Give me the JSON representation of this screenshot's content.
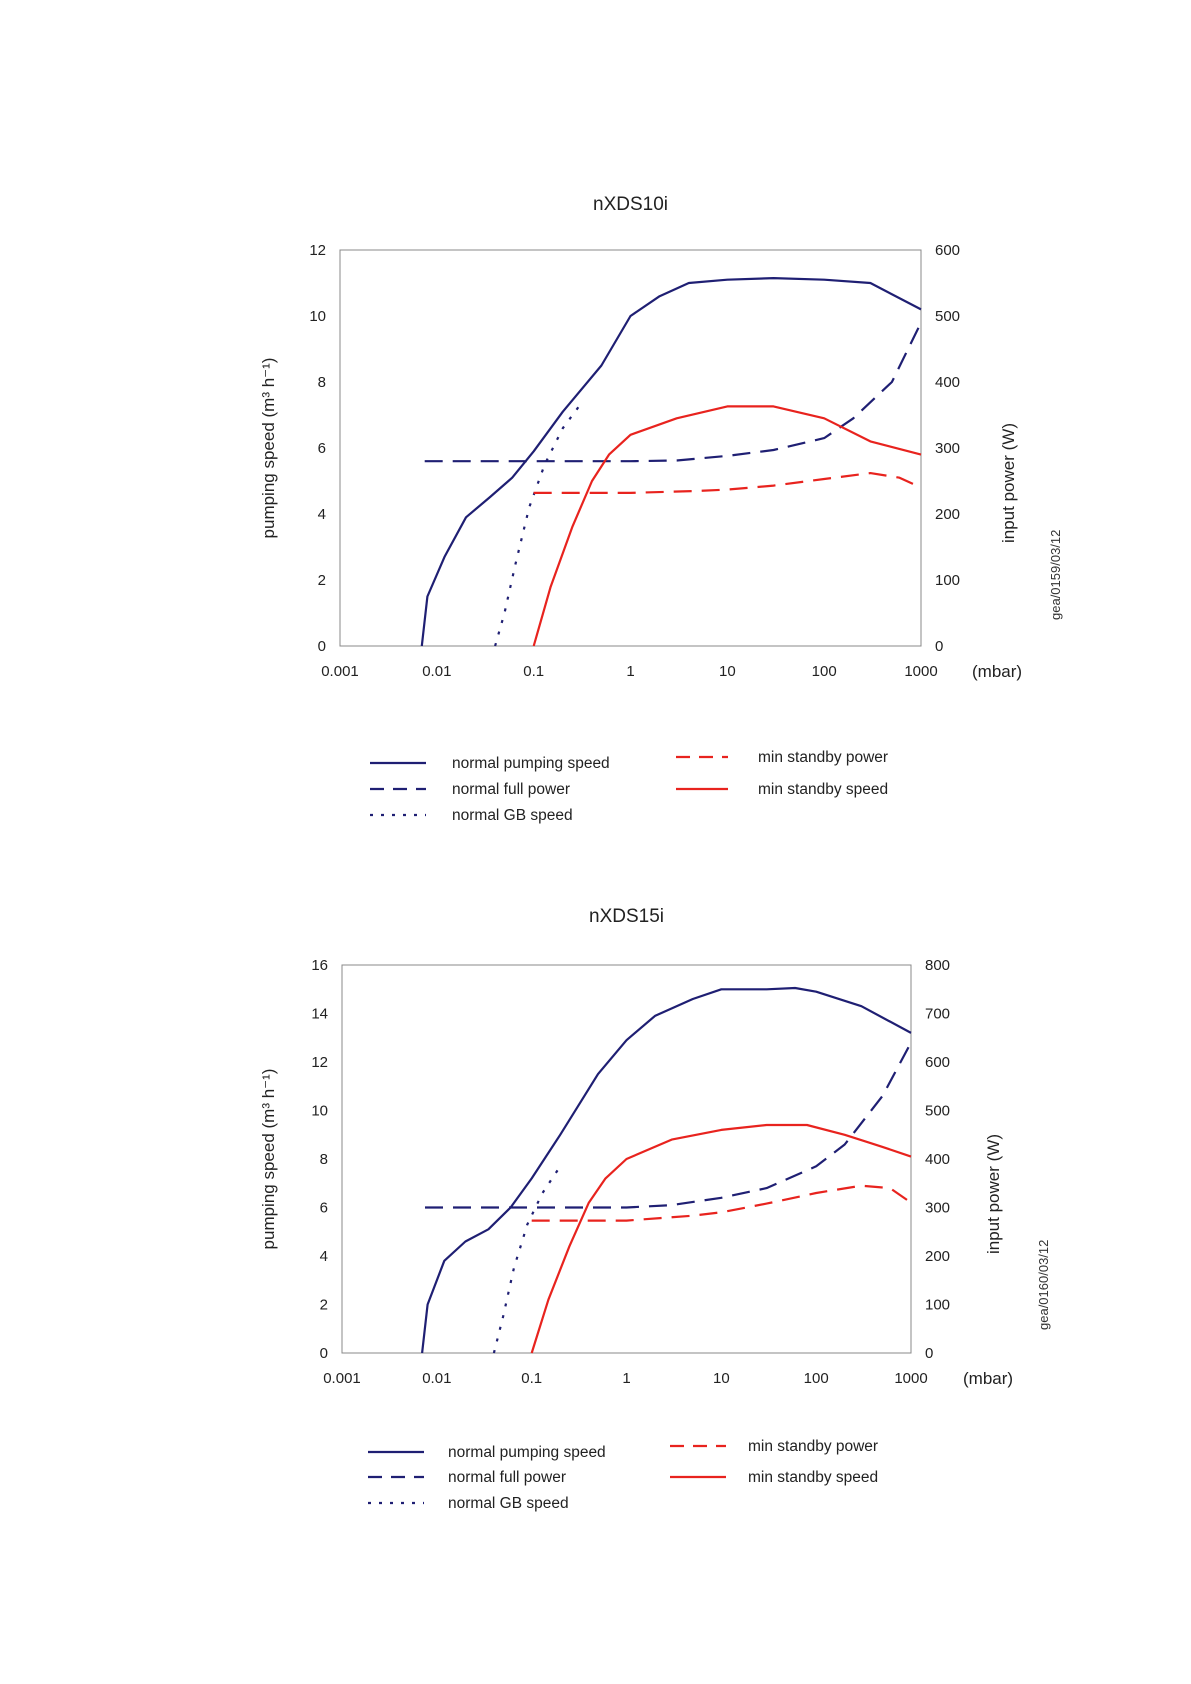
{
  "colors": {
    "navy": "#1f1f73",
    "red": "#e8231e"
  },
  "chart_data": [
    {
      "type": "line",
      "title": "nXDS10i",
      "ylabel": "pumping speed (m³ h⁻¹)",
      "y2label": "input power (W)",
      "xunit": "(mbar)",
      "xscale": "log",
      "xlim": [
        0.001,
        1000
      ],
      "ylim": [
        0,
        12
      ],
      "y2lim": [
        0,
        600
      ],
      "xticks": [
        "0.001",
        "0.01",
        "0.1",
        "1",
        "10",
        "100",
        "1000"
      ],
      "yticks": [
        "0",
        "2",
        "4",
        "6",
        "8",
        "10",
        "12"
      ],
      "y2ticks": [
        "0",
        "100",
        "200",
        "300",
        "400",
        "500",
        "600"
      ],
      "code": "gea/0159/03/12",
      "legend": [
        "normal pumping speed",
        "normal full power",
        "normal GB speed",
        "min standby power",
        "min standby speed"
      ],
      "series": [
        {
          "name": "normal pumping speed",
          "axis": "left",
          "color": "navy",
          "style": "solid",
          "points": [
            [
              0.007,
              0
            ],
            [
              0.008,
              1.5
            ],
            [
              0.012,
              2.7
            ],
            [
              0.02,
              3.9
            ],
            [
              0.035,
              4.5
            ],
            [
              0.06,
              5.1
            ],
            [
              0.1,
              5.9
            ],
            [
              0.2,
              7.1
            ],
            [
              0.5,
              8.5
            ],
            [
              1,
              10.0
            ],
            [
              2,
              10.6
            ],
            [
              4,
              11.0
            ],
            [
              10,
              11.1
            ],
            [
              30,
              11.15
            ],
            [
              100,
              11.1
            ],
            [
              300,
              11.0
            ],
            [
              1000,
              10.2
            ]
          ]
        },
        {
          "name": "normal full power",
          "axis": "right",
          "color": "navy",
          "style": "dash",
          "points": [
            [
              0.0075,
              280
            ],
            [
              0.1,
              280
            ],
            [
              1,
              280
            ],
            [
              3,
              281
            ],
            [
              10,
              288
            ],
            [
              30,
              297
            ],
            [
              100,
              315
            ],
            [
              200,
              345
            ],
            [
              500,
              400
            ],
            [
              1000,
              490
            ]
          ]
        },
        {
          "name": "normal GB speed",
          "axis": "left",
          "color": "navy",
          "style": "dot",
          "points": [
            [
              0.04,
              0
            ],
            [
              0.05,
              1.0
            ],
            [
              0.065,
              2.5
            ],
            [
              0.09,
              4.2
            ],
            [
              0.13,
              5.5
            ],
            [
              0.2,
              6.6
            ],
            [
              0.3,
              7.3
            ]
          ]
        },
        {
          "name": "min standby power",
          "axis": "right",
          "color": "red",
          "style": "dash",
          "points": [
            [
              0.1,
              232
            ],
            [
              1,
              232
            ],
            [
              5,
              235
            ],
            [
              10,
              237
            ],
            [
              30,
              243
            ],
            [
              100,
              253
            ],
            [
              300,
              262
            ],
            [
              600,
              255
            ],
            [
              1000,
              240
            ]
          ]
        },
        {
          "name": "min standby speed",
          "axis": "right",
          "color": "red",
          "style": "solid",
          "points": [
            [
              0.1,
              0
            ],
            [
              0.15,
              90
            ],
            [
              0.25,
              180
            ],
            [
              0.4,
              250
            ],
            [
              0.6,
              290
            ],
            [
              1,
              320
            ],
            [
              3,
              345
            ],
            [
              10,
              363
            ],
            [
              30,
              363
            ],
            [
              100,
              345
            ],
            [
              300,
              310
            ],
            [
              1000,
              290
            ]
          ]
        }
      ]
    },
    {
      "type": "line",
      "title": "nXDS15i",
      "ylabel": "pumping speed (m³ h⁻¹)",
      "y2label": "input power (W)",
      "xunit": "(mbar)",
      "xscale": "log",
      "xlim": [
        0.001,
        1000
      ],
      "ylim": [
        0,
        16
      ],
      "y2lim": [
        0,
        800
      ],
      "xticks": [
        "0.001",
        "0.01",
        "0.1",
        "1",
        "10",
        "100",
        "1000"
      ],
      "yticks": [
        "0",
        "2",
        "4",
        "6",
        "8",
        "10",
        "12",
        "14",
        "16"
      ],
      "y2ticks": [
        "0",
        "100",
        "200",
        "300",
        "400",
        "500",
        "600",
        "700",
        "800"
      ],
      "code": "gea/0160/03/12",
      "legend": [
        "normal pumping speed",
        "normal full power",
        "normal GB speed",
        "min standby power",
        "min standby speed"
      ],
      "series": [
        {
          "name": "normal pumping speed",
          "axis": "left",
          "color": "navy",
          "style": "solid",
          "points": [
            [
              0.007,
              0
            ],
            [
              0.008,
              2.0
            ],
            [
              0.012,
              3.8
            ],
            [
              0.02,
              4.6
            ],
            [
              0.035,
              5.1
            ],
            [
              0.06,
              6.0
            ],
            [
              0.1,
              7.2
            ],
            [
              0.2,
              9.0
            ],
            [
              0.5,
              11.5
            ],
            [
              1,
              12.9
            ],
            [
              2,
              13.9
            ],
            [
              5,
              14.6
            ],
            [
              10,
              15.0
            ],
            [
              30,
              15.0
            ],
            [
              60,
              15.05
            ],
            [
              100,
              14.9
            ],
            [
              300,
              14.3
            ],
            [
              1000,
              13.2
            ]
          ]
        },
        {
          "name": "normal full power",
          "axis": "right",
          "color": "navy",
          "style": "dash",
          "points": [
            [
              0.0075,
              300
            ],
            [
              0.1,
              300
            ],
            [
              1,
              300
            ],
            [
              3,
              305
            ],
            [
              10,
              320
            ],
            [
              30,
              340
            ],
            [
              100,
              385
            ],
            [
              200,
              430
            ],
            [
              500,
              530
            ],
            [
              1000,
              640
            ]
          ]
        },
        {
          "name": "normal GB speed",
          "axis": "left",
          "color": "navy",
          "style": "dot",
          "points": [
            [
              0.04,
              0
            ],
            [
              0.05,
              1.5
            ],
            [
              0.065,
              3.5
            ],
            [
              0.09,
              5.3
            ],
            [
              0.13,
              6.6
            ],
            [
              0.2,
              7.7
            ]
          ]
        },
        {
          "name": "min standby power",
          "axis": "right",
          "color": "red",
          "style": "dash",
          "points": [
            [
              0.1,
              273
            ],
            [
              1,
              273
            ],
            [
              5,
              283
            ],
            [
              10,
              290
            ],
            [
              30,
              308
            ],
            [
              100,
              330
            ],
            [
              300,
              345
            ],
            [
              600,
              340
            ],
            [
              1000,
              310
            ]
          ]
        },
        {
          "name": "min standby speed",
          "axis": "right",
          "color": "red",
          "style": "solid",
          "points": [
            [
              0.1,
              0
            ],
            [
              0.15,
              110
            ],
            [
              0.25,
              220
            ],
            [
              0.4,
              310
            ],
            [
              0.6,
              360
            ],
            [
              1,
              400
            ],
            [
              3,
              440
            ],
            [
              10,
              460
            ],
            [
              30,
              470
            ],
            [
              80,
              470
            ],
            [
              200,
              450
            ],
            [
              500,
              425
            ],
            [
              1000,
              405
            ]
          ]
        }
      ]
    }
  ]
}
